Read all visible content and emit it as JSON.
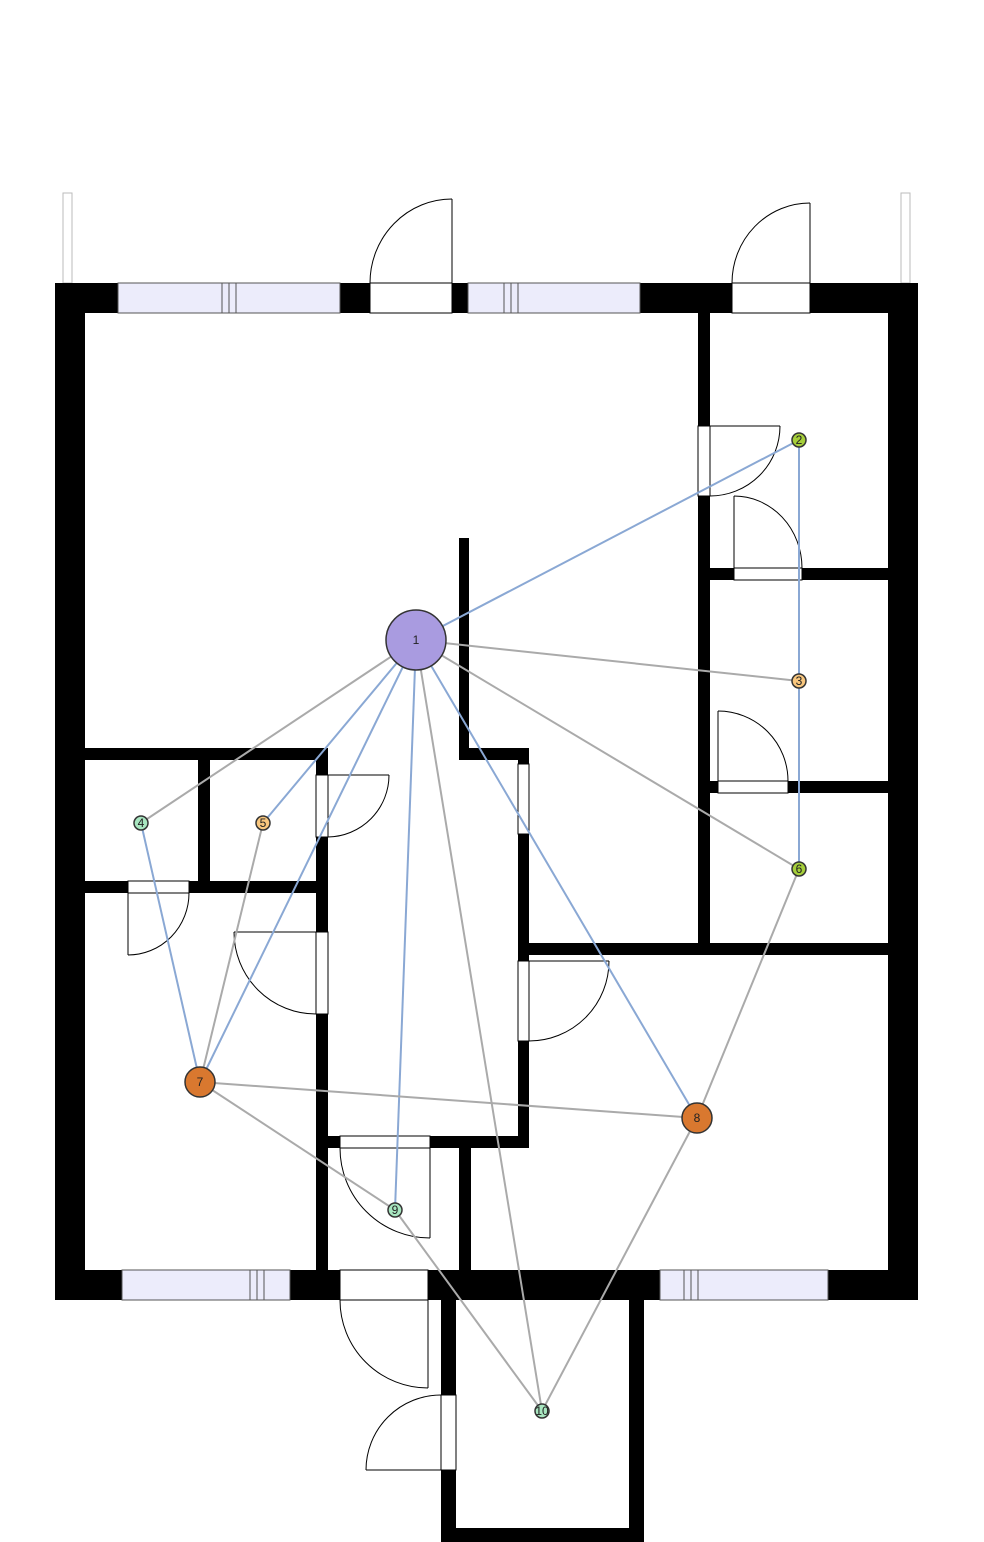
{
  "colors": {
    "edge_blue": "#8aa8d4",
    "edge_gray": "#aaaaaa",
    "wall": "#000000",
    "window": "#ececfb"
  },
  "nodes": [
    {
      "id": "1",
      "label": "1",
      "color": "#a99be0",
      "size": "large"
    },
    {
      "id": "2",
      "label": "2",
      "color": "#a6cf3a",
      "size": "small"
    },
    {
      "id": "3",
      "label": "3",
      "color": "#f9c77e",
      "size": "small"
    },
    {
      "id": "4",
      "label": "4",
      "color": "#a8e6c0",
      "size": "small"
    },
    {
      "id": "5",
      "label": "5",
      "color": "#f9c77e",
      "size": "small"
    },
    {
      "id": "6",
      "label": "6",
      "color": "#a6cf3a",
      "size": "small"
    },
    {
      "id": "7",
      "label": "7",
      "color": "#d9782f",
      "size": "medium"
    },
    {
      "id": "8",
      "label": "8",
      "color": "#d9782f",
      "size": "medium"
    },
    {
      "id": "9",
      "label": "9",
      "color": "#a8e6c0",
      "size": "small"
    },
    {
      "id": "10",
      "label": "10",
      "color": "#a8e6c0",
      "size": "small"
    }
  ],
  "edges": [
    {
      "from": "1",
      "to": "2",
      "kind": "blue"
    },
    {
      "from": "1",
      "to": "3",
      "kind": "gray"
    },
    {
      "from": "1",
      "to": "4",
      "kind": "gray"
    },
    {
      "from": "1",
      "to": "5",
      "kind": "blue"
    },
    {
      "from": "1",
      "to": "6",
      "kind": "gray"
    },
    {
      "from": "1",
      "to": "7",
      "kind": "blue"
    },
    {
      "from": "1",
      "to": "8",
      "kind": "blue"
    },
    {
      "from": "1",
      "to": "9",
      "kind": "blue"
    },
    {
      "from": "1",
      "to": "10",
      "kind": "gray"
    },
    {
      "from": "2",
      "to": "6",
      "kind": "blue"
    },
    {
      "from": "4",
      "to": "7",
      "kind": "blue"
    },
    {
      "from": "5",
      "to": "7",
      "kind": "gray"
    },
    {
      "from": "6",
      "to": "8",
      "kind": "gray"
    },
    {
      "from": "7",
      "to": "8",
      "kind": "gray"
    },
    {
      "from": "7",
      "to": "9",
      "kind": "gray"
    },
    {
      "from": "9",
      "to": "10",
      "kind": "gray"
    },
    {
      "from": "8",
      "to": "10",
      "kind": "gray"
    }
  ]
}
